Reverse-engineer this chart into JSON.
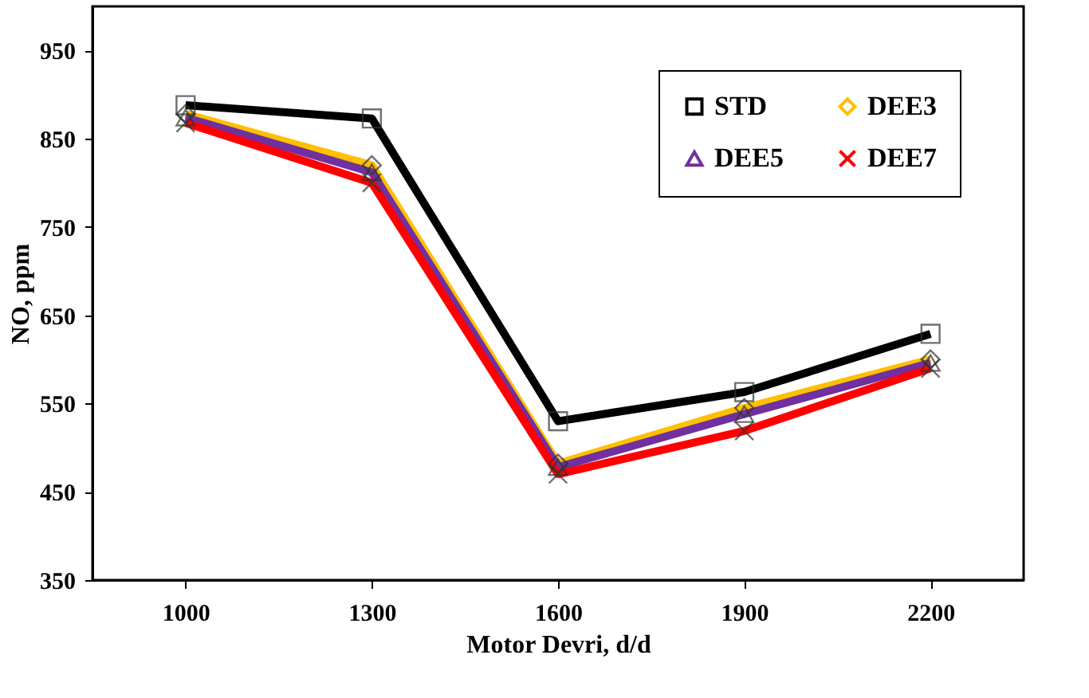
{
  "chart_data": {
    "type": "line",
    "xlabel": "Motor Devri, d/d",
    "ylabel": "NO, ppm",
    "categories": [
      "1000",
      "1300",
      "1600",
      "1900",
      "2200"
    ],
    "series": [
      {
        "name": "STD",
        "color": "#000000",
        "marker": "square",
        "values": [
          888,
          873,
          530,
          563,
          629
        ]
      },
      {
        "name": "DEE3",
        "color": "#ffc000",
        "marker": "diamond",
        "values": [
          878,
          820,
          482,
          545,
          600
        ]
      },
      {
        "name": "DEE5",
        "color": "#7030a0",
        "marker": "triangle",
        "values": [
          874,
          812,
          478,
          538,
          596
        ]
      },
      {
        "name": "DEE7",
        "color": "#ff0000",
        "marker": "cross",
        "values": [
          868,
          800,
          470,
          519,
          590
        ]
      }
    ],
    "ylim": [
      350,
      1000
    ],
    "yticks": [
      350,
      450,
      550,
      650,
      750,
      850,
      950
    ],
    "grid": false,
    "legend": "top right",
    "line_style": "solid"
  }
}
